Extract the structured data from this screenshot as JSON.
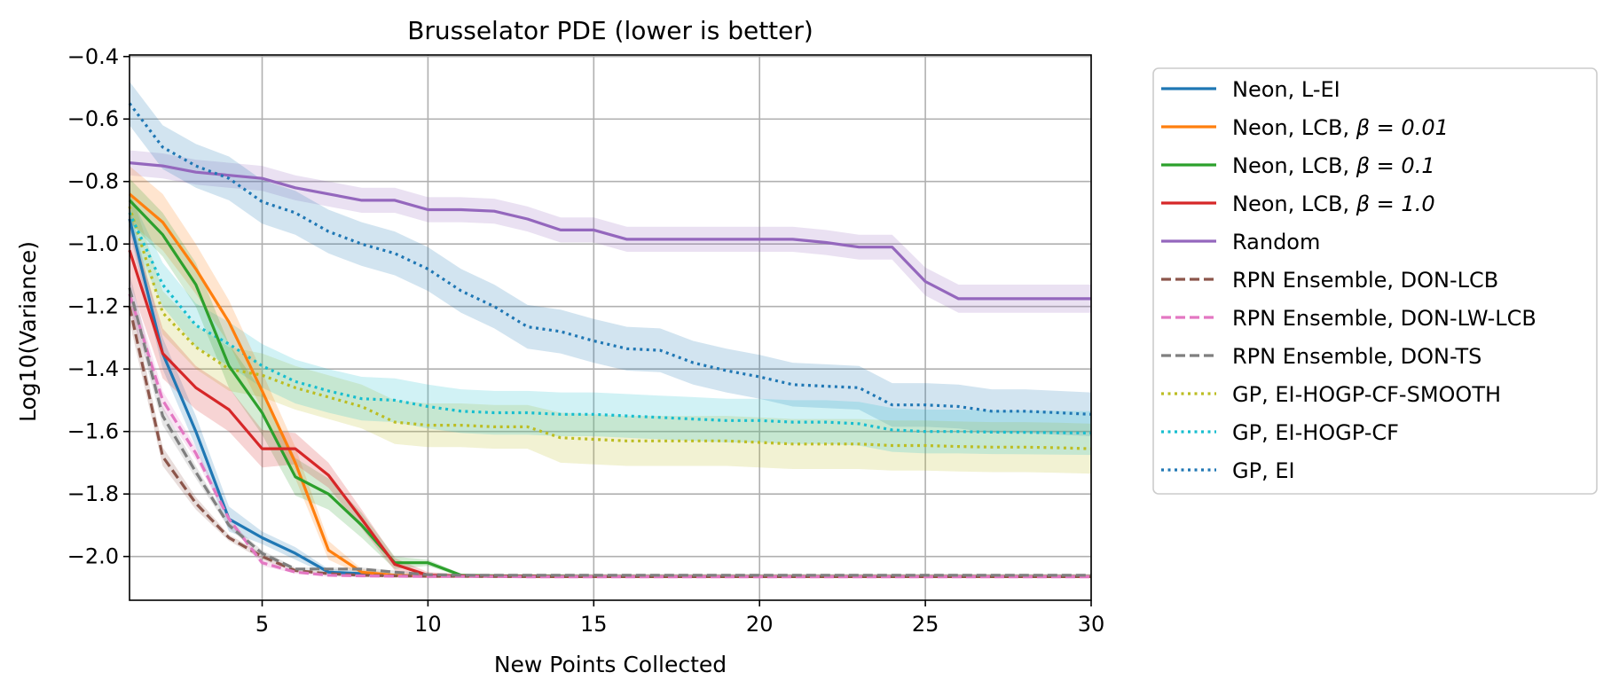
{
  "chart_data": {
    "type": "line",
    "title": "Brusselator PDE (lower is better)",
    "xlabel": "New Points Collected",
    "ylabel": "Log10(Variance)",
    "xlim": [
      1,
      30
    ],
    "ylim": [
      -2.14,
      -0.395
    ],
    "xticks": [
      5,
      10,
      15,
      20,
      25,
      30
    ],
    "yticks": [
      -2.0,
      -1.8,
      -1.6,
      -1.4,
      -1.2,
      -1.0,
      -0.8,
      -0.6,
      -0.4
    ],
    "xtick_labels": [
      "5",
      "10",
      "15",
      "20",
      "25",
      "30"
    ],
    "ytick_labels": [
      "−2.0",
      "−1.8",
      "−1.6",
      "−1.4",
      "−1.2",
      "−1.0",
      "−0.8",
      "−0.6",
      "−0.4"
    ],
    "grid": true,
    "legend_position": "outside-right",
    "x": [
      1,
      2,
      3,
      4,
      5,
      6,
      7,
      8,
      9,
      10,
      11,
      12,
      13,
      14,
      15,
      16,
      17,
      18,
      19,
      20,
      21,
      22,
      23,
      24,
      25,
      26,
      27,
      28,
      29,
      30
    ],
    "series": [
      {
        "name": "Neon, L-EI",
        "color": "#1f77b4",
        "dash": "solid",
        "values": [
          -0.92,
          -1.35,
          -1.6,
          -1.88,
          -1.94,
          -1.99,
          -2.05,
          -2.055,
          -2.06,
          -2.062,
          -2.063,
          -2.063,
          -2.064,
          -2.064,
          -2.064,
          -2.064,
          -2.064,
          -2.064,
          -2.064,
          -2.064,
          -2.064,
          -2.064,
          -2.064,
          -2.064,
          -2.064,
          -2.064,
          -2.064,
          -2.064,
          -2.064,
          -2.064
        ],
        "spread": [
          0.04,
          0.05,
          0.05,
          0.04,
          0.02,
          0.02,
          0.01,
          0.01,
          0.005,
          0.005,
          0.005,
          0.005,
          0.005,
          0.005,
          0.005,
          0.005,
          0.005,
          0.005,
          0.005,
          0.005,
          0.005,
          0.005,
          0.005,
          0.005,
          0.005,
          0.005,
          0.005,
          0.005,
          0.005,
          0.005
        ]
      },
      {
        "name": "Neon, LCB, $\\beta = 0.01$",
        "label_prefix": "Neon, LCB, ",
        "label_math": "β = 0.01",
        "color": "#ff7f0e",
        "dash": "solid",
        "values": [
          -0.84,
          -0.93,
          -1.08,
          -1.25,
          -1.47,
          -1.7,
          -1.98,
          -2.05,
          -2.06,
          -2.062,
          -2.063,
          -2.063,
          -2.064,
          -2.064,
          -2.064,
          -2.064,
          -2.064,
          -2.064,
          -2.064,
          -2.064,
          -2.064,
          -2.064,
          -2.064,
          -2.064,
          -2.064,
          -2.064,
          -2.064,
          -2.064,
          -2.064,
          -2.064
        ],
        "spread": [
          0.09,
          0.09,
          0.08,
          0.07,
          0.06,
          0.05,
          0.03,
          0.01,
          0.005,
          0.005,
          0.005,
          0.005,
          0.005,
          0.005,
          0.005,
          0.005,
          0.005,
          0.005,
          0.005,
          0.005,
          0.005,
          0.005,
          0.005,
          0.005,
          0.005,
          0.005,
          0.005,
          0.005,
          0.005,
          0.005
        ]
      },
      {
        "name": "Neon, LCB, $\\beta = 0.1$",
        "label_prefix": "Neon, LCB, ",
        "label_math": "β = 0.1",
        "color": "#2ca02c",
        "dash": "solid",
        "values": [
          -0.86,
          -0.97,
          -1.13,
          -1.39,
          -1.54,
          -1.745,
          -1.8,
          -1.9,
          -2.02,
          -2.02,
          -2.06,
          -2.062,
          -2.063,
          -2.063,
          -2.064,
          -2.064,
          -2.064,
          -2.064,
          -2.064,
          -2.064,
          -2.064,
          -2.064,
          -2.064,
          -2.064,
          -2.064,
          -2.064,
          -2.064,
          -2.064,
          -2.064,
          -2.064
        ],
        "spread": [
          0.07,
          0.07,
          0.07,
          0.07,
          0.07,
          0.06,
          0.05,
          0.04,
          0.02,
          0.01,
          0.005,
          0.005,
          0.005,
          0.005,
          0.005,
          0.005,
          0.005,
          0.005,
          0.005,
          0.005,
          0.005,
          0.005,
          0.005,
          0.005,
          0.005,
          0.005,
          0.005,
          0.005,
          0.005,
          0.005
        ]
      },
      {
        "name": "Neon, LCB, $\\beta = 1.0$",
        "label_prefix": "Neon, LCB, ",
        "label_math": "β = 1.0",
        "color": "#d62728",
        "dash": "solid",
        "values": [
          -1.02,
          -1.35,
          -1.46,
          -1.53,
          -1.655,
          -1.655,
          -1.74,
          -1.88,
          -2.025,
          -2.06,
          -2.062,
          -2.063,
          -2.063,
          -2.064,
          -2.064,
          -2.064,
          -2.064,
          -2.064,
          -2.064,
          -2.064,
          -2.064,
          -2.064,
          -2.064,
          -2.064,
          -2.064,
          -2.064,
          -2.064,
          -2.064,
          -2.064,
          -2.064
        ],
        "spread": [
          0.1,
          0.08,
          0.07,
          0.07,
          0.06,
          0.05,
          0.04,
          0.03,
          0.02,
          0.01,
          0.005,
          0.005,
          0.005,
          0.005,
          0.005,
          0.005,
          0.005,
          0.005,
          0.005,
          0.005,
          0.005,
          0.005,
          0.005,
          0.005,
          0.005,
          0.005,
          0.005,
          0.005,
          0.005,
          0.005
        ]
      },
      {
        "name": "Random",
        "color": "#9467bd",
        "dash": "solid",
        "values": [
          -0.74,
          -0.75,
          -0.77,
          -0.78,
          -0.79,
          -0.82,
          -0.84,
          -0.86,
          -0.86,
          -0.89,
          -0.89,
          -0.895,
          -0.92,
          -0.955,
          -0.955,
          -0.985,
          -0.985,
          -0.985,
          -0.985,
          -0.985,
          -0.985,
          -0.995,
          -1.01,
          -1.01,
          -1.12,
          -1.175,
          -1.175,
          -1.175,
          -1.175,
          -1.175
        ],
        "spread": [
          0.04,
          0.04,
          0.04,
          0.04,
          0.04,
          0.04,
          0.04,
          0.04,
          0.04,
          0.04,
          0.04,
          0.04,
          0.04,
          0.04,
          0.04,
          0.04,
          0.04,
          0.04,
          0.04,
          0.04,
          0.04,
          0.04,
          0.04,
          0.04,
          0.045,
          0.045,
          0.045,
          0.045,
          0.045,
          0.045
        ]
      },
      {
        "name": "RPN Ensemble, DON-LCB",
        "color": "#8c564b",
        "dash": "dashed",
        "values": [
          -1.2,
          -1.68,
          -1.83,
          -1.94,
          -2.0,
          -2.045,
          -2.055,
          -2.06,
          -2.062,
          -2.063,
          -2.063,
          -2.064,
          -2.064,
          -2.064,
          -2.064,
          -2.064,
          -2.064,
          -2.064,
          -2.064,
          -2.064,
          -2.064,
          -2.064,
          -2.064,
          -2.064,
          -2.064,
          -2.064,
          -2.064,
          -2.064,
          -2.064,
          -2.064
        ],
        "spread": [
          0.05,
          0.03,
          0.02,
          0.01,
          0.01,
          0.005,
          0.005,
          0.005,
          0.005,
          0.005,
          0.005,
          0.005,
          0.005,
          0.005,
          0.005,
          0.005,
          0.005,
          0.005,
          0.005,
          0.005,
          0.005,
          0.005,
          0.005,
          0.005,
          0.005,
          0.005,
          0.005,
          0.005,
          0.005,
          0.005
        ]
      },
      {
        "name": "RPN Ensemble, DON-LW-LCB",
        "color": "#e377c2",
        "dash": "dashed",
        "values": [
          -1.16,
          -1.5,
          -1.67,
          -1.88,
          -2.02,
          -2.05,
          -2.06,
          -2.062,
          -2.063,
          -2.064,
          -2.064,
          -2.064,
          -2.065,
          -2.065,
          -2.065,
          -2.065,
          -2.065,
          -2.065,
          -2.065,
          -2.065,
          -2.065,
          -2.065,
          -2.065,
          -2.065,
          -2.065,
          -2.065,
          -2.065,
          -2.065,
          -2.065,
          -2.065
        ],
        "spread": [
          0.05,
          0.03,
          0.02,
          0.01,
          0.01,
          0.005,
          0.005,
          0.005,
          0.005,
          0.005,
          0.005,
          0.005,
          0.005,
          0.005,
          0.005,
          0.005,
          0.005,
          0.005,
          0.005,
          0.005,
          0.005,
          0.005,
          0.005,
          0.005,
          0.005,
          0.005,
          0.005,
          0.005,
          0.005,
          0.005
        ]
      },
      {
        "name": "RPN Ensemble, DON-TS",
        "color": "#7f7f7f",
        "dash": "dashed",
        "values": [
          -1.14,
          -1.55,
          -1.73,
          -1.9,
          -1.99,
          -2.04,
          -2.04,
          -2.04,
          -2.05,
          -2.058,
          -2.06,
          -2.06,
          -2.06,
          -2.06,
          -2.06,
          -2.06,
          -2.06,
          -2.06,
          -2.06,
          -2.06,
          -2.06,
          -2.06,
          -2.06,
          -2.06,
          -2.06,
          -2.06,
          -2.06,
          -2.06,
          -2.06,
          -2.06
        ],
        "spread": [
          0.05,
          0.03,
          0.02,
          0.01,
          0.01,
          0.005,
          0.005,
          0.005,
          0.005,
          0.005,
          0.005,
          0.005,
          0.005,
          0.005,
          0.005,
          0.005,
          0.005,
          0.005,
          0.005,
          0.005,
          0.005,
          0.005,
          0.005,
          0.005,
          0.005,
          0.005,
          0.005,
          0.005,
          0.005,
          0.005
        ]
      },
      {
        "name": "GP, EI-HOGP-CF-SMOOTH",
        "color": "#bcbd22",
        "dash": "dotted",
        "values": [
          -0.88,
          -1.22,
          -1.33,
          -1.4,
          -1.42,
          -1.46,
          -1.49,
          -1.52,
          -1.57,
          -1.58,
          -1.58,
          -1.585,
          -1.585,
          -1.62,
          -1.625,
          -1.63,
          -1.63,
          -1.63,
          -1.63,
          -1.635,
          -1.64,
          -1.64,
          -1.64,
          -1.645,
          -1.645,
          -1.648,
          -1.65,
          -1.65,
          -1.652,
          -1.655
        ],
        "spread": [
          0.06,
          0.07,
          0.07,
          0.07,
          0.07,
          0.07,
          0.07,
          0.07,
          0.07,
          0.07,
          0.07,
          0.07,
          0.07,
          0.08,
          0.08,
          0.08,
          0.08,
          0.08,
          0.08,
          0.08,
          0.08,
          0.08,
          0.08,
          0.08,
          0.08,
          0.08,
          0.08,
          0.08,
          0.08,
          0.08
        ]
      },
      {
        "name": "GP, EI-HOGP-CF",
        "color": "#17becf",
        "dash": "dotted",
        "values": [
          -0.9,
          -1.13,
          -1.26,
          -1.32,
          -1.39,
          -1.44,
          -1.47,
          -1.495,
          -1.5,
          -1.52,
          -1.535,
          -1.54,
          -1.54,
          -1.545,
          -1.545,
          -1.55,
          -1.555,
          -1.56,
          -1.565,
          -1.565,
          -1.57,
          -1.57,
          -1.575,
          -1.595,
          -1.6,
          -1.6,
          -1.602,
          -1.603,
          -1.604,
          -1.605
        ],
        "spread": [
          0.06,
          0.07,
          0.07,
          0.07,
          0.07,
          0.07,
          0.07,
          0.07,
          0.07,
          0.07,
          0.07,
          0.07,
          0.07,
          0.07,
          0.07,
          0.07,
          0.07,
          0.07,
          0.07,
          0.07,
          0.07,
          0.07,
          0.07,
          0.07,
          0.07,
          0.07,
          0.07,
          0.07,
          0.07,
          0.07
        ]
      },
      {
        "name": "GP, EI",
        "color": "#1f77b4",
        "dash": "dotted",
        "values": [
          -0.55,
          -0.69,
          -0.75,
          -0.79,
          -0.865,
          -0.9,
          -0.96,
          -1.0,
          -1.03,
          -1.08,
          -1.15,
          -1.2,
          -1.265,
          -1.28,
          -1.31,
          -1.335,
          -1.34,
          -1.38,
          -1.405,
          -1.425,
          -1.45,
          -1.455,
          -1.46,
          -1.515,
          -1.515,
          -1.52,
          -1.535,
          -1.535,
          -1.54,
          -1.545
        ],
        "spread": [
          0.07,
          0.07,
          0.07,
          0.07,
          0.07,
          0.07,
          0.07,
          0.07,
          0.07,
          0.07,
          0.07,
          0.07,
          0.07,
          0.07,
          0.07,
          0.07,
          0.07,
          0.07,
          0.07,
          0.07,
          0.07,
          0.07,
          0.07,
          0.07,
          0.07,
          0.07,
          0.07,
          0.07,
          0.07,
          0.07
        ]
      }
    ]
  }
}
